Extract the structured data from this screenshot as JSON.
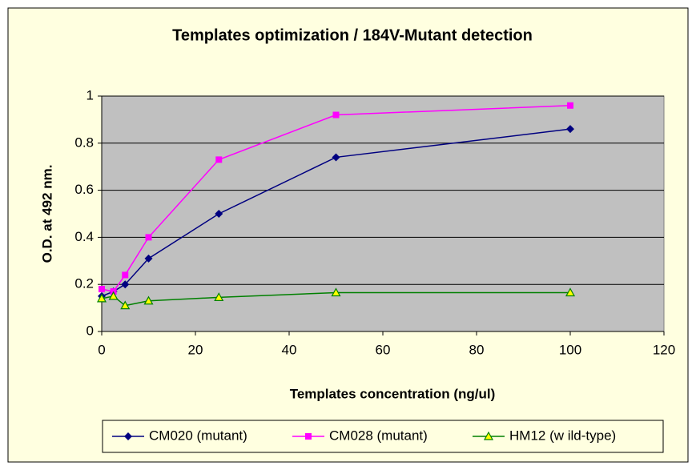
{
  "chart_data": {
    "type": "line",
    "title": "Templates optimization / 184V-Mutant detection",
    "x_label": "Templates concentration (ng/ul)",
    "y_label": "O.D. at 492 nm.",
    "x": [
      0,
      2.5,
      5,
      10,
      25,
      50,
      100
    ],
    "series": [
      {
        "name": "CM020 (mutant)",
        "color": "#000080",
        "marker": "diamond",
        "values": [
          0.15,
          0.17,
          0.2,
          0.31,
          0.5,
          0.74,
          0.86
        ]
      },
      {
        "name": "CM028 (mutant)",
        "color": "#ff00ff",
        "marker": "square",
        "values": [
          0.18,
          0.17,
          0.24,
          0.4,
          0.73,
          0.92,
          0.96
        ]
      },
      {
        "name": "HM12 (w ild-type)",
        "color": "#008000",
        "marker": "triangle",
        "values": [
          0.14,
          0.15,
          0.11,
          0.13,
          0.145,
          0.165,
          0.165
        ]
      }
    ],
    "xlim": [
      0,
      120
    ],
    "xticks": [
      0,
      20,
      40,
      60,
      80,
      100,
      120
    ],
    "ylim": [
      0,
      1
    ],
    "yticks": [
      0,
      0.2,
      0.4,
      0.6,
      0.8,
      1
    ],
    "grid": true,
    "legend": "bottom"
  }
}
